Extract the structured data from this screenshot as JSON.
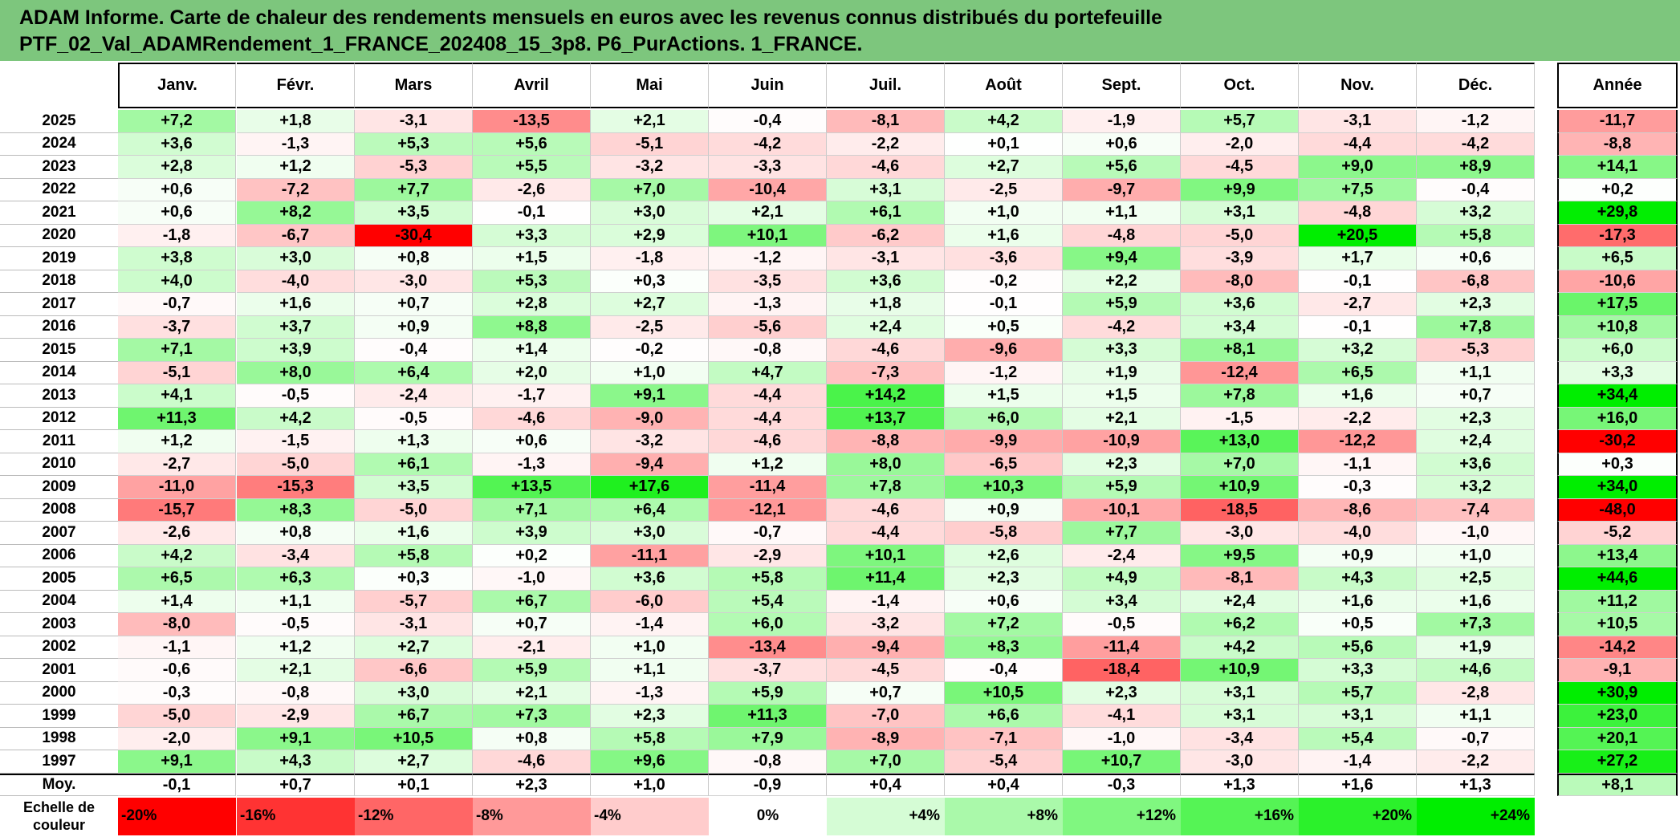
{
  "title": {
    "line1": "ADAM Informe. Carte de chaleur des rendements mensuels en euros avec les revenus connus distribués du portefeuille",
    "line2": "PTF_02_Val_ADAMRendement_1_FRANCE_202408_15_3p8. P6_PurActions. 1_FRANCE."
  },
  "chart_data": {
    "type": "heatmap",
    "columns": [
      "Janv.",
      "Févr.",
      "Mars",
      "Avril",
      "Mai",
      "Juin",
      "Juil.",
      "Août",
      "Sept.",
      "Oct.",
      "Nov.",
      "Déc."
    ],
    "year_column": "Année",
    "rows": [
      {
        "year": "2025",
        "values": [
          "+7,2",
          "+1,8",
          "-3,1",
          "-13,5",
          "+2,1",
          "-0,4",
          "-8,1",
          "+4,2",
          "-1,9",
          "+5,7",
          "-3,1",
          "-1,2"
        ],
        "annual": "-11,7"
      },
      {
        "year": "2024",
        "values": [
          "+3,6",
          "-1,3",
          "+5,3",
          "+5,6",
          "-5,1",
          "-4,2",
          "-2,2",
          "+0,1",
          "+0,6",
          "-2,0",
          "-4,4",
          "-4,2"
        ],
        "annual": "-8,8"
      },
      {
        "year": "2023",
        "values": [
          "+2,8",
          "+1,2",
          "-5,3",
          "+5,5",
          "-3,2",
          "-3,3",
          "-4,6",
          "+2,7",
          "+5,6",
          "-4,5",
          "+9,0",
          "+8,9"
        ],
        "annual": "+14,1"
      },
      {
        "year": "2022",
        "values": [
          "+0,6",
          "-7,2",
          "+7,7",
          "-2,6",
          "+7,0",
          "-10,4",
          "+3,1",
          "-2,5",
          "-9,7",
          "+9,9",
          "+7,5",
          "-0,4"
        ],
        "annual": "+0,2"
      },
      {
        "year": "2021",
        "values": [
          "+0,6",
          "+8,2",
          "+3,5",
          "-0,1",
          "+3,0",
          "+2,1",
          "+6,1",
          "+1,0",
          "+1,1",
          "+3,1",
          "-4,8",
          "+3,2"
        ],
        "annual": "+29,8"
      },
      {
        "year": "2020",
        "values": [
          "-1,8",
          "-6,7",
          "-30,4",
          "+3,3",
          "+2,9",
          "+10,1",
          "-6,2",
          "+1,6",
          "-4,8",
          "-5,0",
          "+20,5",
          "+5,8"
        ],
        "annual": "-17,3"
      },
      {
        "year": "2019",
        "values": [
          "+3,8",
          "+3,0",
          "+0,8",
          "+1,5",
          "-1,8",
          "-1,2",
          "-3,1",
          "-3,6",
          "+9,4",
          "-3,9",
          "+1,7",
          "+0,6"
        ],
        "annual": "+6,5"
      },
      {
        "year": "2018",
        "values": [
          "+4,0",
          "-4,0",
          "-3,0",
          "+5,3",
          "+0,3",
          "-3,5",
          "+3,6",
          "-0,2",
          "+2,2",
          "-8,0",
          "-0,1",
          "-6,8"
        ],
        "annual": "-10,6"
      },
      {
        "year": "2017",
        "values": [
          "-0,7",
          "+1,6",
          "+0,7",
          "+2,8",
          "+2,7",
          "-1,3",
          "+1,8",
          "-0,1",
          "+5,9",
          "+3,6",
          "-2,7",
          "+2,3"
        ],
        "annual": "+17,5"
      },
      {
        "year": "2016",
        "values": [
          "-3,7",
          "+3,7",
          "+0,9",
          "+8,8",
          "-2,5",
          "-5,6",
          "+2,4",
          "+0,5",
          "-4,2",
          "+3,4",
          "-0,1",
          "+7,8"
        ],
        "annual": "+10,8"
      },
      {
        "year": "2015",
        "values": [
          "+7,1",
          "+3,9",
          "-0,4",
          "+1,4",
          "-0,2",
          "-0,8",
          "-4,6",
          "-9,6",
          "+3,3",
          "+8,1",
          "+3,2",
          "-5,3"
        ],
        "annual": "+6,0"
      },
      {
        "year": "2014",
        "values": [
          "-5,1",
          "+8,0",
          "+6,4",
          "+2,0",
          "+1,0",
          "+4,7",
          "-7,3",
          "-1,2",
          "+1,9",
          "-12,4",
          "+6,5",
          "+1,1"
        ],
        "annual": "+3,3"
      },
      {
        "year": "2013",
        "values": [
          "+4,1",
          "-0,5",
          "-2,4",
          "-1,7",
          "+9,1",
          "-4,4",
          "+14,2",
          "+1,5",
          "+1,5",
          "+7,8",
          "+1,6",
          "+0,7"
        ],
        "annual": "+34,4"
      },
      {
        "year": "2012",
        "values": [
          "+11,3",
          "+4,2",
          "-0,5",
          "-4,6",
          "-9,0",
          "-4,4",
          "+13,7",
          "+6,0",
          "+2,1",
          "-1,5",
          "-2,2",
          "+2,3"
        ],
        "annual": "+16,0"
      },
      {
        "year": "2011",
        "values": [
          "+1,2",
          "-1,5",
          "+1,3",
          "+0,6",
          "-3,2",
          "-4,6",
          "-8,8",
          "-9,9",
          "-10,9",
          "+13,0",
          "-12,2",
          "+2,4"
        ],
        "annual": "-30,2"
      },
      {
        "year": "2010",
        "values": [
          "-2,7",
          "-5,0",
          "+6,1",
          "-1,3",
          "-9,4",
          "+1,2",
          "+8,0",
          "-6,5",
          "+2,3",
          "+7,0",
          "-1,1",
          "+3,6"
        ],
        "annual": "+0,3"
      },
      {
        "year": "2009",
        "values": [
          "-11,0",
          "-15,3",
          "+3,5",
          "+13,5",
          "+17,6",
          "-11,4",
          "+7,8",
          "+10,3",
          "+5,9",
          "+10,9",
          "-0,3",
          "+3,2"
        ],
        "annual": "+34,0"
      },
      {
        "year": "2008",
        "values": [
          "-15,7",
          "+8,3",
          "-5,0",
          "+7,1",
          "+6,4",
          "-12,1",
          "-4,6",
          "+0,9",
          "-10,1",
          "-18,5",
          "-8,6",
          "-7,4"
        ],
        "annual": "-48,0"
      },
      {
        "year": "2007",
        "values": [
          "-2,6",
          "+0,8",
          "+1,6",
          "+3,9",
          "+3,0",
          "-0,7",
          "-4,4",
          "-5,8",
          "+7,7",
          "-3,0",
          "-4,0",
          "-1,0"
        ],
        "annual": "-5,2"
      },
      {
        "year": "2006",
        "values": [
          "+4,2",
          "-3,4",
          "+5,8",
          "+0,2",
          "-11,1",
          "-2,9",
          "+10,1",
          "+2,6",
          "-2,4",
          "+9,5",
          "+0,9",
          "+1,0"
        ],
        "annual": "+13,4"
      },
      {
        "year": "2005",
        "values": [
          "+6,5",
          "+6,3",
          "+0,3",
          "-1,0",
          "+3,6",
          "+5,8",
          "+11,4",
          "+2,3",
          "+4,9",
          "-8,1",
          "+4,3",
          "+2,5"
        ],
        "annual": "+44,6"
      },
      {
        "year": "2004",
        "values": [
          "+1,4",
          "+1,1",
          "-5,7",
          "+6,7",
          "-6,0",
          "+5,4",
          "-1,4",
          "+0,6",
          "+3,4",
          "+2,4",
          "+1,6",
          "+1,6"
        ],
        "annual": "+11,2"
      },
      {
        "year": "2003",
        "values": [
          "-8,0",
          "-0,5",
          "-3,1",
          "+0,7",
          "-1,4",
          "+6,0",
          "-3,2",
          "+7,2",
          "-0,5",
          "+6,2",
          "+0,5",
          "+7,3"
        ],
        "annual": "+10,5"
      },
      {
        "year": "2002",
        "values": [
          "-1,1",
          "+1,2",
          "+2,7",
          "-2,1",
          "+1,0",
          "-13,4",
          "-9,4",
          "+8,3",
          "-11,4",
          "+4,2",
          "+5,6",
          "+1,9"
        ],
        "annual": "-14,2"
      },
      {
        "year": "2001",
        "values": [
          "-0,6",
          "+2,1",
          "-6,6",
          "+5,9",
          "+1,1",
          "-3,7",
          "-4,5",
          "-0,4",
          "-18,4",
          "+10,9",
          "+3,3",
          "+4,6"
        ],
        "annual": "-9,1"
      },
      {
        "year": "2000",
        "values": [
          "-0,3",
          "-0,8",
          "+3,0",
          "+2,1",
          "-1,3",
          "+5,9",
          "+0,7",
          "+10,5",
          "+2,3",
          "+3,1",
          "+5,7",
          "-2,8"
        ],
        "annual": "+30,9"
      },
      {
        "year": "1999",
        "values": [
          "-5,0",
          "-2,9",
          "+6,7",
          "+7,3",
          "+2,3",
          "+11,3",
          "-7,0",
          "+6,6",
          "-4,1",
          "+3,1",
          "+3,1",
          "+1,1"
        ],
        "annual": "+23,0"
      },
      {
        "year": "1998",
        "values": [
          "-2,0",
          "+9,1",
          "+10,5",
          "+0,8",
          "+5,8",
          "+7,9",
          "-8,9",
          "-7,1",
          "-1,0",
          "-3,4",
          "+5,4",
          "-0,7"
        ],
        "annual": "+20,1"
      },
      {
        "year": "1997",
        "values": [
          "+9,1",
          "+4,3",
          "+2,7",
          "-4,6",
          "+9,6",
          "-0,8",
          "+7,0",
          "-5,4",
          "+10,7",
          "-3,0",
          "-1,4",
          "-2,2"
        ],
        "annual": "+27,2"
      }
    ],
    "average": {
      "label": "Moy.",
      "values": [
        "-0,1",
        "+0,7",
        "+0,1",
        "+2,3",
        "+1,0",
        "-0,9",
        "+0,4",
        "+0,4",
        "-0,3",
        "+1,3",
        "+1,6",
        "+1,3"
      ],
      "annual": "+8,1"
    },
    "scale": {
      "label_line1": "Echelle de",
      "label_line2": "couleur",
      "steps": [
        "-20%",
        "-16%",
        "-12%",
        "-8%",
        "-4%",
        "0%",
        "+4%",
        "+8%",
        "+12%",
        "+16%",
        "+20%",
        "+24%"
      ],
      "step_values": [
        -20,
        -16,
        -12,
        -8,
        -4,
        0,
        4,
        8,
        12,
        16,
        20,
        24
      ]
    },
    "colors": {
      "negative_max": "#ff0000",
      "neutral": "#ffffff",
      "positive_max": "#00ee00"
    }
  }
}
